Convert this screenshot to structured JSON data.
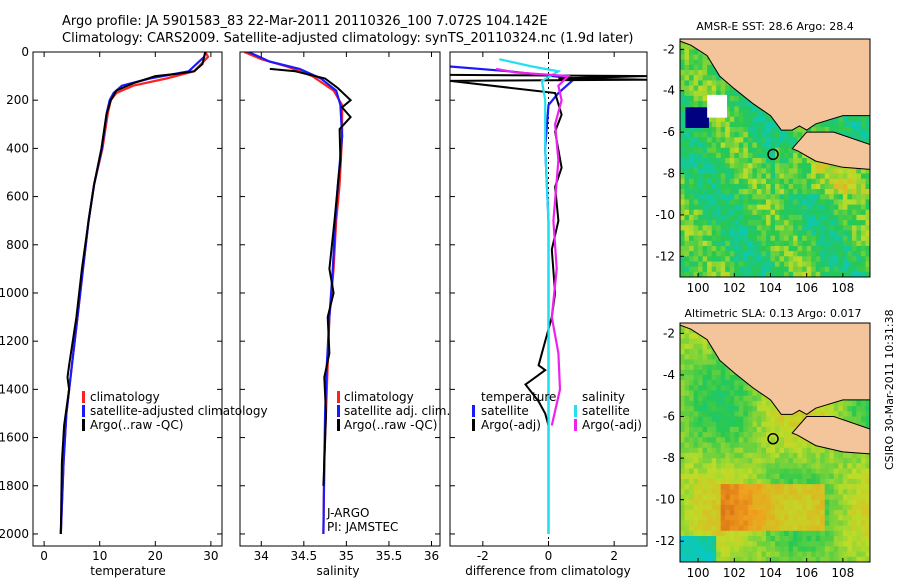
{
  "header": {
    "line1": "Argo profile: JA 5901583_83 22-Mar-2011 20110326_100 7.072S 104.142E",
    "line2": "Climatology: CARS2009. Satellite-adjusted climatology: synTS_20110324.nc (1.9d later)"
  },
  "side_stamp": "CSIRO 30-Mar-2011 10:31:38",
  "colors": {
    "clim": "#ff2020",
    "sat": "#1a1aff",
    "argo": "#000000",
    "sat_sal": "#22e0f0",
    "argo_sal": "#ee22ee",
    "land": "#f4c59a"
  },
  "chart_data": [
    {
      "type": "line",
      "name": "temperature-profile",
      "xlabel": "temperature",
      "ylabel": "depth",
      "xlim": [
        -2,
        32
      ],
      "ylim": [
        2050,
        0
      ],
      "xticks": [
        0,
        10,
        20,
        30
      ],
      "yticks": [
        0,
        200,
        400,
        600,
        800,
        1000,
        1200,
        1400,
        1600,
        1800,
        2000
      ],
      "legend": [
        "climatology",
        "satellite-adjusted climatology",
        "Argo(..raw -QC)"
      ],
      "series": [
        {
          "name": "climatology",
          "color": "#ff2020",
          "points": [
            [
              29,
              0
            ],
            [
              29.5,
              20
            ],
            [
              27,
              80
            ],
            [
              22,
              110
            ],
            [
              16,
              140
            ],
            [
              13,
              170
            ],
            [
              12,
              200
            ],
            [
              11.5,
              250
            ],
            [
              10.5,
              400
            ],
            [
              9,
              550
            ],
            [
              8,
              700
            ],
            [
              7,
              900
            ],
            [
              6,
              1100
            ],
            [
              5,
              1300
            ],
            [
              4,
              1500
            ],
            [
              3.5,
              1700
            ],
            [
              3,
              2000
            ]
          ]
        },
        {
          "name": "satellite-adjusted",
          "color": "#1a1aff",
          "points": [
            [
              29,
              0
            ],
            [
              28.8,
              20
            ],
            [
              26,
              80
            ],
            [
              19,
              110
            ],
            [
              14,
              140
            ],
            [
              12.5,
              170
            ],
            [
              11.8,
              200
            ],
            [
              11.3,
              250
            ],
            [
              10.4,
              400
            ],
            [
              9,
              550
            ],
            [
              8,
              700
            ],
            [
              7,
              900
            ],
            [
              6,
              1100
            ],
            [
              5,
              1300
            ],
            [
              4,
              1500
            ],
            [
              3.5,
              1700
            ],
            [
              3,
              2000
            ]
          ]
        },
        {
          "name": "Argo",
          "color": "#000000",
          "points": [
            [
              29,
              0
            ],
            [
              28.5,
              50
            ],
            [
              27,
              80
            ],
            [
              24,
              90
            ],
            [
              20,
              100
            ],
            [
              16,
              130
            ],
            [
              13,
              160
            ],
            [
              12,
              200
            ],
            [
              11.2,
              260
            ],
            [
              10.3,
              400
            ],
            [
              9,
              550
            ],
            [
              8,
              700
            ],
            [
              6.8,
              900
            ],
            [
              5.8,
              1100
            ],
            [
              4.5,
              1300
            ],
            [
              4.2,
              1350
            ],
            [
              4.5,
              1400
            ],
            [
              3.6,
              1550
            ],
            [
              3.2,
              1700
            ],
            [
              3,
              2000
            ]
          ]
        }
      ]
    },
    {
      "type": "line",
      "name": "salinity-profile",
      "xlabel": "salinity",
      "xlim": [
        33.75,
        36.1
      ],
      "ylim": [
        2050,
        0
      ],
      "xticks": [
        34,
        34.5,
        35,
        35.5,
        36
      ],
      "xticklabels": [
        "34",
        "34.5",
        "35",
        "35.5",
        "36"
      ],
      "legend": [
        "climatology",
        "satellite adj. clim.",
        "Argo(..raw -QC)"
      ],
      "annotation": [
        "J-ARGO",
        "PI: JAMSTEC"
      ],
      "series": [
        {
          "name": "climatology",
          "color": "#ff2020",
          "points": [
            [
              33.8,
              0
            ],
            [
              34.0,
              30
            ],
            [
              34.3,
              60
            ],
            [
              34.6,
              100
            ],
            [
              34.85,
              160
            ],
            [
              34.95,
              220
            ],
            [
              34.95,
              350
            ],
            [
              34.92,
              550
            ],
            [
              34.88,
              700
            ],
            [
              34.85,
              900
            ],
            [
              34.8,
              1100
            ],
            [
              34.78,
              1300
            ],
            [
              34.76,
              1500
            ],
            [
              34.74,
              1700
            ],
            [
              34.73,
              2000
            ]
          ]
        },
        {
          "name": "satellite-adjusted",
          "color": "#1a1aff",
          "points": [
            [
              33.85,
              0
            ],
            [
              34.1,
              40
            ],
            [
              34.45,
              70
            ],
            [
              34.7,
              110
            ],
            [
              34.88,
              160
            ],
            [
              34.93,
              220
            ],
            [
              34.95,
              350
            ],
            [
              34.9,
              550
            ],
            [
              34.87,
              700
            ],
            [
              34.84,
              900
            ],
            [
              34.8,
              1100
            ],
            [
              34.77,
              1300
            ],
            [
              34.75,
              1500
            ],
            [
              34.74,
              1700
            ],
            [
              34.73,
              2000
            ]
          ]
        },
        {
          "name": "Argo",
          "color": "#000000",
          "points": [
            [
              34.1,
              70
            ],
            [
              34.4,
              80
            ],
            [
              34.75,
              110
            ],
            [
              34.9,
              150
            ],
            [
              35.05,
              200
            ],
            [
              34.95,
              230
            ],
            [
              35.05,
              270
            ],
            [
              34.92,
              320
            ],
            [
              34.93,
              450
            ],
            [
              34.9,
              550
            ],
            [
              34.86,
              700
            ],
            [
              34.8,
              900
            ],
            [
              34.85,
              1000
            ],
            [
              34.78,
              1100
            ],
            [
              34.8,
              1250
            ],
            [
              34.74,
              1350
            ],
            [
              34.76,
              1500
            ],
            [
              34.74,
              1700
            ],
            [
              34.73,
              1800
            ]
          ]
        }
      ]
    },
    {
      "type": "line",
      "name": "difference-profile",
      "xlabel": "difference from climatology",
      "xlim": [
        -3,
        3
      ],
      "ylim": [
        2050,
        0
      ],
      "xticks": [
        -2,
        0,
        2
      ],
      "legend_temp": [
        "temperature",
        "satellite",
        "Argo(-adj)"
      ],
      "legend_sal": [
        "salinity",
        "satellite",
        "Argo(-adj)"
      ],
      "series": [
        {
          "name": "temp-satellite",
          "color": "#1a1aff",
          "points": [
            [
              -3,
              60
            ],
            [
              -1.2,
              80
            ],
            [
              0.8,
              110
            ],
            [
              0.3,
              170
            ],
            [
              0,
              220
            ],
            [
              -0.1,
              400
            ],
            [
              0,
              700
            ],
            [
              0,
              1100
            ],
            [
              0,
              1500
            ],
            [
              0,
              2000
            ]
          ]
        },
        {
          "name": "temp-argo",
          "color": "#000000",
          "points": [
            [
              -3,
              95
            ],
            [
              3,
              100
            ],
            [
              0.3,
              110
            ],
            [
              3,
              115
            ],
            [
              -3,
              120
            ],
            [
              0.2,
              170
            ],
            [
              0.4,
              260
            ],
            [
              0.2,
              330
            ],
            [
              0.4,
              480
            ],
            [
              0.2,
              560
            ],
            [
              0.3,
              700
            ],
            [
              0.1,
              820
            ],
            [
              0.2,
              1000
            ],
            [
              0.1,
              1100
            ],
            [
              -0.2,
              1250
            ],
            [
              -0.3,
              1300
            ],
            [
              -0.1,
              1320
            ],
            [
              -0.4,
              1350
            ],
            [
              -0.7,
              1380
            ],
            [
              -0.3,
              1450
            ],
            [
              -0.1,
              1500
            ],
            [
              0,
              1550
            ]
          ]
        },
        {
          "name": "sal-satellite",
          "color": "#22e0f0",
          "points": [
            [
              -1.5,
              30
            ],
            [
              -0.5,
              60
            ],
            [
              0.3,
              80
            ],
            [
              -0.2,
              120
            ],
            [
              -0.1,
              200
            ],
            [
              -0.1,
              400
            ],
            [
              0,
              700
            ],
            [
              0,
              1100
            ],
            [
              0,
              1500
            ],
            [
              0,
              2000
            ]
          ]
        },
        {
          "name": "sal-argo",
          "color": "#ee22ee",
          "points": [
            [
              -1.6,
              70
            ],
            [
              -1.0,
              85
            ],
            [
              0.6,
              100
            ],
            [
              0.3,
              140
            ],
            [
              0.4,
              200
            ],
            [
              0.2,
              300
            ],
            [
              0.3,
              450
            ],
            [
              0.15,
              700
            ],
            [
              0.25,
              900
            ],
            [
              0.1,
              1100
            ],
            [
              0.3,
              1250
            ],
            [
              0.35,
              1400
            ],
            [
              0.1,
              1550
            ]
          ]
        }
      ]
    },
    {
      "type": "heatmap",
      "name": "sst-map",
      "title": "AMSR-E SST: 28.6 Argo: 28.4",
      "xlim": [
        99,
        109.5
      ],
      "ylim": [
        -13,
        -1.5
      ],
      "xticks": [
        100,
        102,
        104,
        106,
        108
      ],
      "yticks": [
        -2,
        -4,
        -6,
        -8,
        -10,
        -12
      ],
      "argo_position": {
        "lon": 104.142,
        "lat": -7.072
      }
    },
    {
      "type": "heatmap",
      "name": "sla-map",
      "title": "Altimetric SLA: 0.13 Argo: 0.017",
      "xlim": [
        99,
        109.5
      ],
      "ylim": [
        -13,
        -1.5
      ],
      "xticks": [
        100,
        102,
        104,
        106,
        108
      ],
      "yticks": [
        -2,
        -4,
        -6,
        -8,
        -10,
        -12
      ],
      "argo_position": {
        "lon": 104.142,
        "lat": -7.072
      }
    }
  ]
}
